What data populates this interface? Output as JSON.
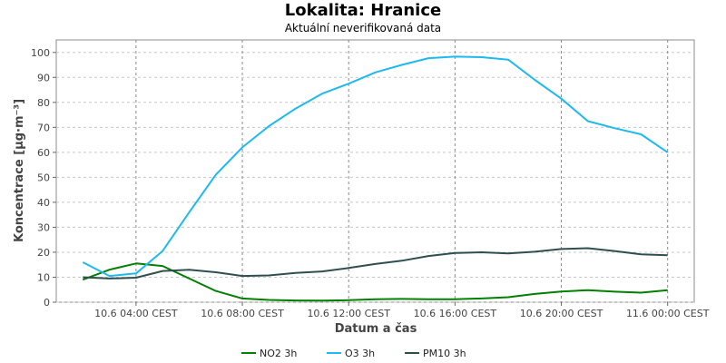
{
  "chart_data": {
    "type": "line",
    "title": "Lokalita: Hranice",
    "subtitle": "Aktuální neverifikovaná data",
    "xlabel": "Datum a čas",
    "ylabel": "Koncentrace [µg·m⁻³]",
    "ylim": [
      0,
      105
    ],
    "xlim": [
      "2023-06-10T01:00",
      "2023-06-11T01:00"
    ],
    "yticks": [
      0,
      10,
      20,
      30,
      40,
      50,
      60,
      70,
      80,
      90,
      100
    ],
    "xticks": [
      {
        "t": "2023-06-10T04:00",
        "label": "10.6 04:00 CEST"
      },
      {
        "t": "2023-06-10T08:00",
        "label": "10.6 08:00 CEST"
      },
      {
        "t": "2023-06-10T12:00",
        "label": "10.6 12:00 CEST"
      },
      {
        "t": "2023-06-10T16:00",
        "label": "10.6 16:00 CEST"
      },
      {
        "t": "2023-06-10T20:00",
        "label": "10.6 20:00 CEST"
      },
      {
        "t": "2023-06-11T00:00",
        "label": "11.6 00:00 CEST"
      }
    ],
    "grid": true,
    "legend_position": "bottom",
    "series": [
      {
        "name": "NO2 3h",
        "color": "#008000",
        "x": [
          "2023-06-10T02:00",
          "2023-06-10T03:00",
          "2023-06-10T04:00",
          "2023-06-10T05:00",
          "2023-06-10T06:00",
          "2023-06-10T07:00",
          "2023-06-10T08:00",
          "2023-06-10T09:00",
          "2023-06-10T10:00",
          "2023-06-10T11:00",
          "2023-06-10T12:00",
          "2023-06-10T13:00",
          "2023-06-10T14:00",
          "2023-06-10T15:00",
          "2023-06-10T16:00",
          "2023-06-10T17:00",
          "2023-06-10T18:00",
          "2023-06-10T19:00",
          "2023-06-10T20:00",
          "2023-06-10T21:00",
          "2023-06-10T22:00",
          "2023-06-10T23:00",
          "2023-06-11T00:00"
        ],
        "values": [
          9,
          13,
          15.5,
          14.5,
          9.5,
          4.5,
          1.5,
          0.9,
          0.7,
          0.6,
          0.8,
          1.2,
          1.3,
          1.2,
          1.2,
          1.5,
          2.0,
          3.3,
          4.3,
          4.8,
          4.2,
          3.8,
          4.8
        ]
      },
      {
        "name": "O3 3h",
        "color": "#1EB9EE",
        "x": [
          "2023-06-10T02:00",
          "2023-06-10T03:00",
          "2023-06-10T04:00",
          "2023-06-10T05:00",
          "2023-06-10T06:00",
          "2023-06-10T07:00",
          "2023-06-10T08:00",
          "2023-06-10T09:00",
          "2023-06-10T10:00",
          "2023-06-10T11:00",
          "2023-06-10T12:00",
          "2023-06-10T13:00",
          "2023-06-10T14:00",
          "2023-06-10T15:00",
          "2023-06-10T16:00",
          "2023-06-10T17:00",
          "2023-06-10T18:00",
          "2023-06-10T19:00",
          "2023-06-10T20:00",
          "2023-06-10T21:00",
          "2023-06-10T22:00",
          "2023-06-10T23:00",
          "2023-06-11T00:00"
        ],
        "values": [
          16,
          10.5,
          11.5,
          20.5,
          36,
          51,
          62,
          70.5,
          77.5,
          83.5,
          87.5,
          92,
          95,
          97.7,
          98.3,
          98.1,
          97.1,
          89,
          81.5,
          72.5,
          69.7,
          67.2,
          60
        ]
      },
      {
        "name": "PM10 3h",
        "color": "#2F4F4F",
        "x": [
          "2023-06-10T02:00",
          "2023-06-10T03:00",
          "2023-06-10T04:00",
          "2023-06-10T05:00",
          "2023-06-10T06:00",
          "2023-06-10T07:00",
          "2023-06-10T08:00",
          "2023-06-10T09:00",
          "2023-06-10T10:00",
          "2023-06-10T11:00",
          "2023-06-10T12:00",
          "2023-06-10T13:00",
          "2023-06-10T14:00",
          "2023-06-10T15:00",
          "2023-06-10T16:00",
          "2023-06-10T17:00",
          "2023-06-10T18:00",
          "2023-06-10T19:00",
          "2023-06-10T20:00",
          "2023-06-10T21:00",
          "2023-06-10T22:00",
          "2023-06-10T23:00",
          "2023-06-11T00:00"
        ],
        "values": [
          10,
          9.5,
          9.8,
          12.5,
          13,
          12,
          10.5,
          10.7,
          11.7,
          12.3,
          13.7,
          15.3,
          16.6,
          18.5,
          19.7,
          20,
          19.5,
          20.2,
          21.3,
          21.6,
          20.5,
          19.2,
          18.8
        ]
      }
    ]
  }
}
